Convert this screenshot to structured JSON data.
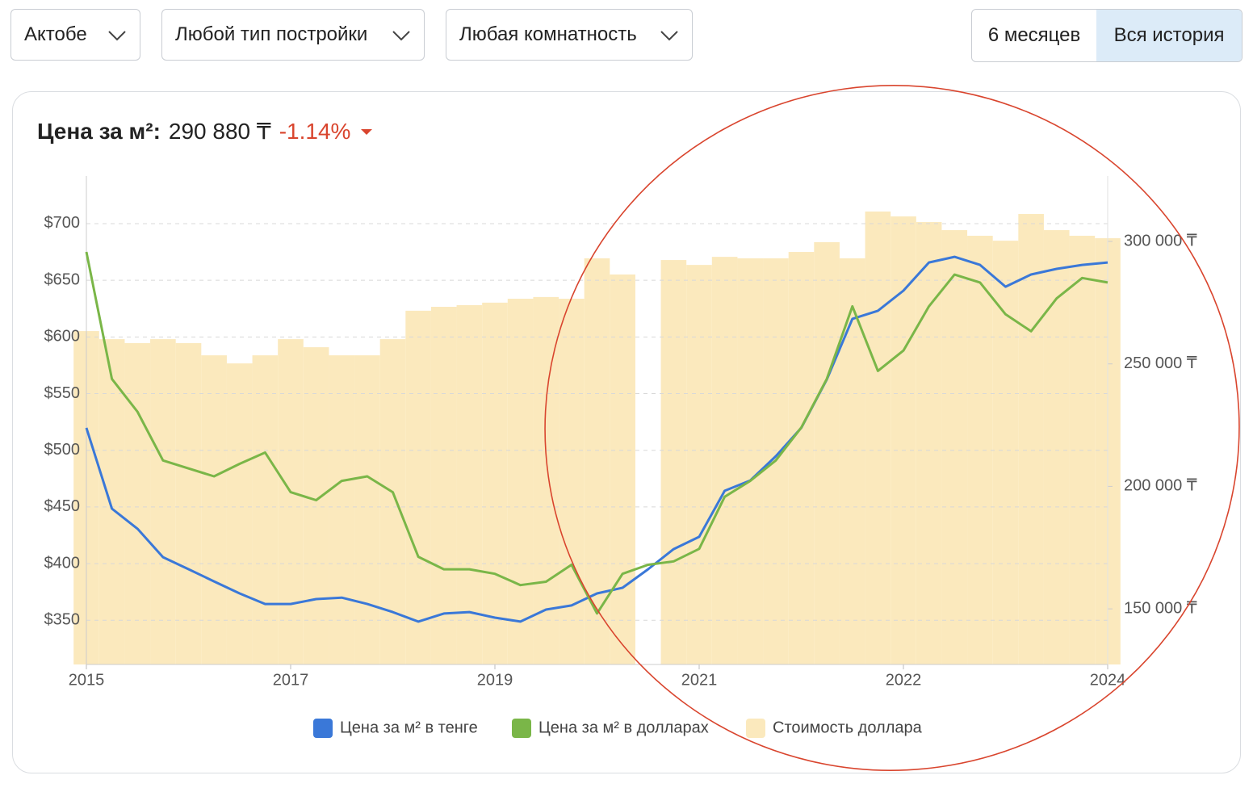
{
  "filters": {
    "city": "Актобе",
    "building_type": "Любой тип постройки",
    "rooms": "Любая комнатность"
  },
  "period": {
    "options": [
      "6 месяцев",
      "Вся история"
    ],
    "active": 1
  },
  "price_header": {
    "label": "Цена за м²:",
    "value": "290 880 ₸",
    "change": "-1.14%"
  },
  "chart_data": {
    "type": "line",
    "x": [
      0,
      0.125,
      0.25,
      0.375,
      0.5,
      0.625,
      0.75,
      0.875,
      1,
      1.125,
      1.25,
      1.375,
      1.5,
      1.625,
      1.75,
      1.875,
      2,
      2.125,
      2.25,
      2.375,
      2.5,
      2.625,
      2.75,
      2.875,
      3,
      3.125,
      3.25,
      3.375,
      3.5,
      3.625,
      3.75,
      3.875,
      4,
      4.125,
      4.25,
      4.375,
      4.5,
      4.625,
      4.75,
      4.875,
      5
    ],
    "xlim": [
      0,
      5
    ],
    "xticks": [
      {
        "value": 0,
        "label": "2015"
      },
      {
        "value": 1,
        "label": "2017"
      },
      {
        "value": 2,
        "label": "2019"
      },
      {
        "value": 3,
        "label": "2021"
      },
      {
        "value": 4,
        "label": "2022"
      },
      {
        "value": 5,
        "label": "2024"
      }
    ],
    "ylim": [
      311,
      742
    ],
    "yticks": [
      {
        "value": 350,
        "label": "$350"
      },
      {
        "value": 400,
        "label": "$400"
      },
      {
        "value": 450,
        "label": "$450"
      },
      {
        "value": 500,
        "label": "$500"
      },
      {
        "value": 550,
        "label": "$550"
      },
      {
        "value": 600,
        "label": "$600"
      },
      {
        "value": 650,
        "label": "$650"
      },
      {
        "value": 700,
        "label": "$700"
      }
    ],
    "y2lim": [
      127300,
      326700
    ],
    "y2ticks": [
      {
        "value": 150000,
        "label": "150 000 ₸"
      },
      {
        "value": 200000,
        "label": "200 000 ₸"
      },
      {
        "value": 250000,
        "label": "250 000 ₸"
      },
      {
        "value": 300000,
        "label": "300 000 ₸"
      }
    ],
    "grid": true,
    "legend": "bottom",
    "series": [
      {
        "name": "Цена за м² в тенге",
        "color": "#3a78d8",
        "axis": "y2",
        "type": "line",
        "values": [
          223900,
          190900,
          182700,
          171100,
          166200,
          161200,
          156300,
          152000,
          152000,
          154000,
          154600,
          152000,
          148700,
          144800,
          148100,
          148700,
          146400,
          144800,
          149700,
          151400,
          156300,
          158600,
          166200,
          174400,
          179400,
          198200,
          202400,
          212300,
          223900,
          243600,
          268400,
          271700,
          279900,
          291400,
          293700,
          290400,
          281500,
          286500,
          288800,
          290400,
          291400
        ]
      },
      {
        "name": "Цена за м² в долларах",
        "color": "#7ab648",
        "type": "line",
        "values": [
          675,
          563,
          534,
          491,
          484,
          477,
          488,
          498,
          463,
          456,
          473,
          477,
          463,
          406,
          395,
          395,
          391,
          381,
          384,
          399,
          356,
          391,
          399,
          402,
          413,
          459,
          473,
          491,
          520,
          563,
          627,
          570,
          588,
          627,
          655,
          648,
          620,
          605,
          634,
          652,
          648
        ]
      },
      {
        "name": "Стоимость доллара",
        "color": "#fbe9bd",
        "axis": "y2",
        "type": "bar",
        "values": [
          263400,
          260100,
          258500,
          260100,
          258500,
          253500,
          250200,
          253500,
          260100,
          256800,
          253500,
          253500,
          260100,
          271700,
          273300,
          274000,
          275000,
          276600,
          277300,
          276600,
          293100,
          286500,
          null,
          292400,
          290400,
          293700,
          293100,
          293100,
          295700,
          299700,
          293100,
          312200,
          310200,
          307900,
          304600,
          302300,
          300300,
          311200,
          304600,
          302300,
          301300
        ]
      }
    ]
  }
}
